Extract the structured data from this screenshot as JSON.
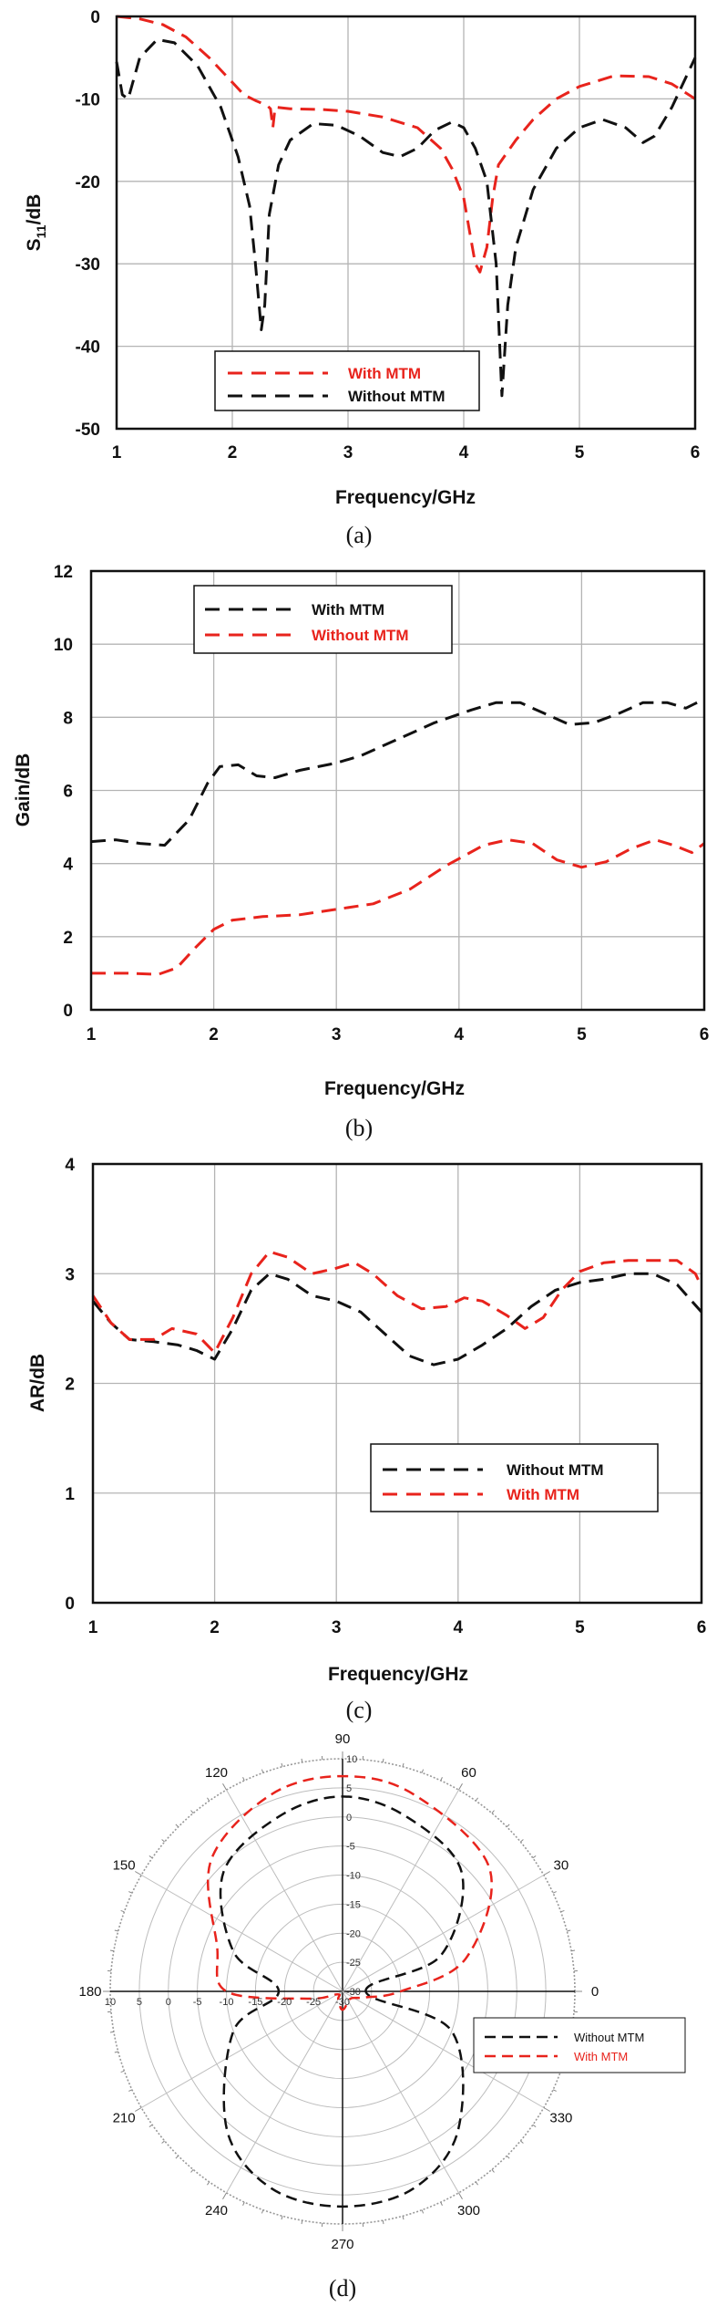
{
  "figure": {
    "captions": [
      "(a)",
      "(b)",
      "(c)",
      "(d)"
    ]
  },
  "colors": {
    "red": "#e8231c",
    "black": "#111111",
    "grid": "#b4b4b4"
  },
  "chart_data": [
    {
      "id": "a",
      "type": "line",
      "caption": "(a)",
      "title": "",
      "xlabel": "Frequency/GHz",
      "ylabel_main": "S",
      "ylabel_sub": "11",
      "ylabel_tail": "/dB",
      "xlim": [
        1,
        6
      ],
      "ylim": [
        -50,
        0
      ],
      "xticks": [
        1,
        2,
        3,
        4,
        5,
        6
      ],
      "yticks": [
        0,
        -10,
        -20,
        -30,
        -40,
        -50
      ],
      "grid": true,
      "legend_position": "lower-center",
      "series": [
        {
          "name": "With MTM",
          "color": "#e8231c",
          "dash": "dashed",
          "points": [
            [
              1,
              0
            ],
            [
              1.2,
              -0.3
            ],
            [
              1.4,
              -1
            ],
            [
              1.6,
              -2.5
            ],
            [
              1.8,
              -5
            ],
            [
              2.0,
              -8
            ],
            [
              2.1,
              -9.5
            ],
            [
              2.2,
              -10.2
            ],
            [
              2.3,
              -10.8
            ],
            [
              2.33,
              -11.2
            ],
            [
              2.35,
              -13.5
            ],
            [
              2.37,
              -11
            ],
            [
              2.5,
              -11.2
            ],
            [
              2.8,
              -11.3
            ],
            [
              3.0,
              -11.5
            ],
            [
              3.3,
              -12.2
            ],
            [
              3.6,
              -13.5
            ],
            [
              3.8,
              -16
            ],
            [
              3.9,
              -18.5
            ],
            [
              4.0,
              -22
            ],
            [
              4.05,
              -26
            ],
            [
              4.1,
              -30
            ],
            [
              4.14,
              -31
            ],
            [
              4.2,
              -28
            ],
            [
              4.25,
              -22
            ],
            [
              4.3,
              -18
            ],
            [
              4.45,
              -15
            ],
            [
              4.6,
              -12.5
            ],
            [
              4.8,
              -10
            ],
            [
              5.0,
              -8.5
            ],
            [
              5.3,
              -7.2
            ],
            [
              5.6,
              -7.3
            ],
            [
              5.8,
              -8.2
            ],
            [
              6.0,
              -10
            ]
          ]
        },
        {
          "name": "Without MTM",
          "color": "#111111",
          "dash": "dashed",
          "points": [
            [
              1,
              -5.5
            ],
            [
              1.05,
              -9.5
            ],
            [
              1.1,
              -10
            ],
            [
              1.2,
              -5
            ],
            [
              1.35,
              -2.8
            ],
            [
              1.5,
              -3.2
            ],
            [
              1.7,
              -6
            ],
            [
              1.9,
              -11
            ],
            [
              2.05,
              -17
            ],
            [
              2.15,
              -23
            ],
            [
              2.2,
              -30
            ],
            [
              2.25,
              -38
            ],
            [
              2.28,
              -35
            ],
            [
              2.32,
              -24
            ],
            [
              2.4,
              -18
            ],
            [
              2.5,
              -15
            ],
            [
              2.7,
              -13
            ],
            [
              2.9,
              -13.2
            ],
            [
              3.1,
              -14.5
            ],
            [
              3.3,
              -16.5
            ],
            [
              3.45,
              -17
            ],
            [
              3.6,
              -16
            ],
            [
              3.75,
              -13.8
            ],
            [
              3.9,
              -12.8
            ],
            [
              4.0,
              -13.5
            ],
            [
              4.1,
              -16
            ],
            [
              4.2,
              -20
            ],
            [
              4.28,
              -30
            ],
            [
              4.33,
              -46
            ],
            [
              4.38,
              -35
            ],
            [
              4.45,
              -28
            ],
            [
              4.6,
              -21
            ],
            [
              4.8,
              -16
            ],
            [
              5.0,
              -13.5
            ],
            [
              5.2,
              -12.5
            ],
            [
              5.4,
              -13.5
            ],
            [
              5.55,
              -15.3
            ],
            [
              5.65,
              -14.5
            ],
            [
              5.8,
              -11
            ],
            [
              6.0,
              -5
            ]
          ]
        }
      ]
    },
    {
      "id": "b",
      "type": "line",
      "caption": "(b)",
      "title": "",
      "xlabel": "Frequency/GHz",
      "ylabel": "Gain/dB",
      "xlim": [
        1,
        6
      ],
      "ylim": [
        0,
        12
      ],
      "xticks": [
        1,
        2,
        3,
        4,
        5,
        6
      ],
      "yticks": [
        0,
        2,
        4,
        6,
        8,
        10,
        12
      ],
      "grid": true,
      "legend_position": "top-left",
      "series": [
        {
          "name": "With MTM",
          "color": "#111111",
          "dash": "dashed",
          "points": [
            [
              1,
              4.6
            ],
            [
              1.2,
              4.65
            ],
            [
              1.4,
              4.55
            ],
            [
              1.6,
              4.5
            ],
            [
              1.8,
              5.2
            ],
            [
              1.95,
              6.2
            ],
            [
              2.05,
              6.65
            ],
            [
              2.2,
              6.7
            ],
            [
              2.35,
              6.4
            ],
            [
              2.5,
              6.35
            ],
            [
              2.7,
              6.55
            ],
            [
              3.0,
              6.75
            ],
            [
              3.2,
              6.95
            ],
            [
              3.5,
              7.4
            ],
            [
              3.8,
              7.85
            ],
            [
              4.1,
              8.2
            ],
            [
              4.3,
              8.4
            ],
            [
              4.5,
              8.4
            ],
            [
              4.7,
              8.1
            ],
            [
              4.9,
              7.8
            ],
            [
              5.1,
              7.85
            ],
            [
              5.3,
              8.1
            ],
            [
              5.5,
              8.4
            ],
            [
              5.7,
              8.4
            ],
            [
              5.85,
              8.25
            ],
            [
              6.0,
              8.5
            ]
          ]
        },
        {
          "name": "Without MTM",
          "color": "#e8231c",
          "dash": "dashed",
          "points": [
            [
              1,
              1.0
            ],
            [
              1.3,
              1.0
            ],
            [
              1.55,
              0.97
            ],
            [
              1.7,
              1.15
            ],
            [
              1.85,
              1.7
            ],
            [
              2.0,
              2.2
            ],
            [
              2.15,
              2.45
            ],
            [
              2.4,
              2.55
            ],
            [
              2.7,
              2.6
            ],
            [
              3.0,
              2.75
            ],
            [
              3.3,
              2.9
            ],
            [
              3.6,
              3.3
            ],
            [
              3.9,
              3.95
            ],
            [
              4.2,
              4.5
            ],
            [
              4.4,
              4.65
            ],
            [
              4.6,
              4.55
            ],
            [
              4.8,
              4.1
            ],
            [
              5.0,
              3.9
            ],
            [
              5.2,
              4.05
            ],
            [
              5.4,
              4.4
            ],
            [
              5.6,
              4.65
            ],
            [
              5.75,
              4.5
            ],
            [
              5.9,
              4.3
            ],
            [
              6.0,
              4.55
            ]
          ]
        }
      ]
    },
    {
      "id": "c",
      "type": "line",
      "caption": "(c)",
      "title": "",
      "xlabel": "Frequency/GHz",
      "ylabel": "AR/dB",
      "xlim": [
        1,
        6
      ],
      "ylim": [
        0,
        4
      ],
      "xticks": [
        1,
        2,
        3,
        4,
        5,
        6
      ],
      "yticks": [
        0,
        1,
        2,
        3,
        4
      ],
      "grid": true,
      "legend_position": "lower-right",
      "series": [
        {
          "name": "Without MTM",
          "color": "#111111",
          "dash": "dashed",
          "points": [
            [
              1,
              2.75
            ],
            [
              1.15,
              2.55
            ],
            [
              1.3,
              2.4
            ],
            [
              1.5,
              2.38
            ],
            [
              1.7,
              2.35
            ],
            [
              1.85,
              2.3
            ],
            [
              2.0,
              2.22
            ],
            [
              2.15,
              2.5
            ],
            [
              2.3,
              2.85
            ],
            [
              2.45,
              3.0
            ],
            [
              2.6,
              2.95
            ],
            [
              2.8,
              2.8
            ],
            [
              3.0,
              2.75
            ],
            [
              3.2,
              2.65
            ],
            [
              3.4,
              2.45
            ],
            [
              3.6,
              2.25
            ],
            [
              3.8,
              2.17
            ],
            [
              4.0,
              2.22
            ],
            [
              4.2,
              2.35
            ],
            [
              4.4,
              2.5
            ],
            [
              4.6,
              2.7
            ],
            [
              4.8,
              2.85
            ],
            [
              5.0,
              2.92
            ],
            [
              5.2,
              2.95
            ],
            [
              5.4,
              3.0
            ],
            [
              5.6,
              3.0
            ],
            [
              5.8,
              2.9
            ],
            [
              6.0,
              2.65
            ]
          ]
        },
        {
          "name": "With MTM",
          "color": "#e8231c",
          "dash": "dashed",
          "points": [
            [
              1,
              2.8
            ],
            [
              1.15,
              2.55
            ],
            [
              1.3,
              2.4
            ],
            [
              1.5,
              2.4
            ],
            [
              1.65,
              2.5
            ],
            [
              1.85,
              2.45
            ],
            [
              2.0,
              2.28
            ],
            [
              2.15,
              2.6
            ],
            [
              2.3,
              3.0
            ],
            [
              2.45,
              3.2
            ],
            [
              2.6,
              3.15
            ],
            [
              2.8,
              3.0
            ],
            [
              3.0,
              3.05
            ],
            [
              3.15,
              3.1
            ],
            [
              3.3,
              3.0
            ],
            [
              3.5,
              2.8
            ],
            [
              3.7,
              2.68
            ],
            [
              3.9,
              2.7
            ],
            [
              4.05,
              2.78
            ],
            [
              4.2,
              2.75
            ],
            [
              4.4,
              2.62
            ],
            [
              4.55,
              2.5
            ],
            [
              4.7,
              2.6
            ],
            [
              4.85,
              2.85
            ],
            [
              5.0,
              3.02
            ],
            [
              5.2,
              3.1
            ],
            [
              5.4,
              3.12
            ],
            [
              5.6,
              3.12
            ],
            [
              5.8,
              3.12
            ],
            [
              5.95,
              3.0
            ],
            [
              6.0,
              2.88
            ]
          ]
        }
      ]
    },
    {
      "id": "d",
      "type": "polar",
      "caption": "(d)",
      "title": "",
      "angle_labels": [
        {
          "deg": 0,
          "text": "0"
        },
        {
          "deg": 30,
          "text": "30"
        },
        {
          "deg": 60,
          "text": "60"
        },
        {
          "deg": 90,
          "text": "90"
        },
        {
          "deg": 120,
          "text": "120"
        },
        {
          "deg": 150,
          "text": "150"
        },
        {
          "deg": 180,
          "text": "180"
        },
        {
          "deg": 210,
          "text": "210"
        },
        {
          "deg": 240,
          "text": "240"
        },
        {
          "deg": 270,
          "text": "270"
        },
        {
          "deg": 300,
          "text": "300"
        },
        {
          "deg": 330,
          "text": "330"
        }
      ],
      "rlim": [
        -30,
        10
      ],
      "r_tick_values": [
        10,
        5,
        0,
        -5,
        -10,
        -15,
        -20,
        -25,
        -30
      ],
      "r_tick_labels": [
        "10",
        "5",
        "0",
        "-5",
        "-10",
        "-15",
        "-20",
        "-25",
        "-30"
      ],
      "grid": true,
      "legend_position": "right",
      "series": [
        {
          "name": "Without MTM",
          "color": "#111111",
          "dash": "dashed",
          "points": [
            [
              0,
              -26
            ],
            [
              20,
              -12
            ],
            [
              45,
              -1
            ],
            [
              70,
              2
            ],
            [
              90,
              3.5
            ],
            [
              110,
              2
            ],
            [
              135,
              -1
            ],
            [
              160,
              -10
            ],
            [
              180,
              -19
            ],
            [
              200,
              -10
            ],
            [
              230,
              1
            ],
            [
              250,
              6
            ],
            [
              270,
              7
            ],
            [
              290,
              6
            ],
            [
              310,
              1
            ],
            [
              340,
              -10
            ],
            [
              360,
              -26
            ]
          ]
        },
        {
          "name": "With MTM",
          "color": "#e8231c",
          "dash": "dashed",
          "points": [
            [
              0,
              -20
            ],
            [
              15,
              -8
            ],
            [
              40,
              3
            ],
            [
              70,
              6
            ],
            [
              90,
              7
            ],
            [
              110,
              6
            ],
            [
              135,
              2
            ],
            [
              160,
              -7
            ],
            [
              180,
              -10
            ],
            [
              192,
              -24
            ],
            [
              210,
              -29
            ],
            [
              240,
              -28.5
            ],
            [
              265,
              -27
            ],
            [
              275,
              -27
            ],
            [
              300,
              -28
            ],
            [
              325,
              -28
            ],
            [
              345,
              -26
            ],
            [
              360,
              -20
            ]
          ]
        }
      ]
    }
  ]
}
